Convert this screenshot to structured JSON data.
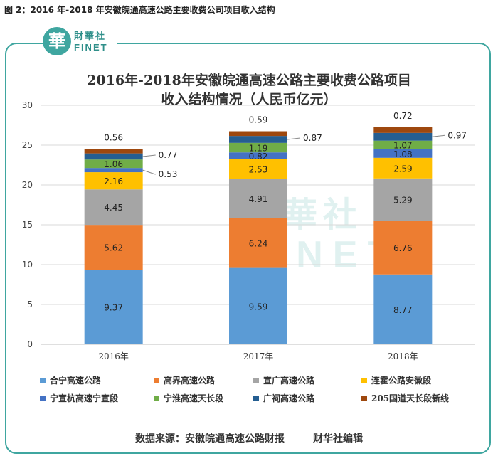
{
  "figure_caption": "图 2：2016 年-2018 年安徽皖通高速公路主要收费公司项目收入结构",
  "logo": {
    "mark": "華",
    "cn": "財華社",
    "en": "FINET"
  },
  "watermark": {
    "cn": "財華社",
    "en": "FINET"
  },
  "source": {
    "text": "数据来源：安徽皖通高速公路财报",
    "editor": "财华社编辑"
  },
  "colors": {
    "series": [
      "#5b9bd5",
      "#ed7d31",
      "#a5a5a5",
      "#ffc000",
      "#4472c4",
      "#70ad47",
      "#255e91",
      "#9e480e"
    ],
    "frame": "#3fa6a0"
  },
  "chart_data": {
    "type": "bar",
    "stacked": true,
    "title": [
      "2016年-2018年安徽皖通高速公路主要收费公路项目",
      "收入结构情况（人民币亿元）"
    ],
    "categories": [
      "2016年",
      "2017年",
      "2018年"
    ],
    "ylim": [
      0,
      30
    ],
    "yticks": [
      0,
      5,
      10,
      15,
      20,
      25,
      30
    ],
    "grid": true,
    "legend_position": "bottom",
    "series": [
      {
        "name": "合宁高速公路",
        "values": [
          9.37,
          9.59,
          8.77
        ]
      },
      {
        "name": "高界高速公路",
        "values": [
          5.62,
          6.24,
          6.76
        ]
      },
      {
        "name": "宣广高速公路",
        "values": [
          4.45,
          4.91,
          5.29
        ]
      },
      {
        "name": "连霍公路安徽段",
        "values": [
          2.16,
          2.53,
          2.59
        ]
      },
      {
        "name": "宁宣杭高速宁宣段",
        "values": [
          0.53,
          0.82,
          1.08
        ]
      },
      {
        "name": "宁淮高速天长段",
        "values": [
          1.06,
          1.19,
          1.07
        ]
      },
      {
        "name": "广祠高速公路",
        "values": [
          0.77,
          0.87,
          0.97
        ]
      },
      {
        "name": "205国道天长段新线",
        "values": [
          0.56,
          0.59,
          0.72
        ]
      }
    ]
  }
}
